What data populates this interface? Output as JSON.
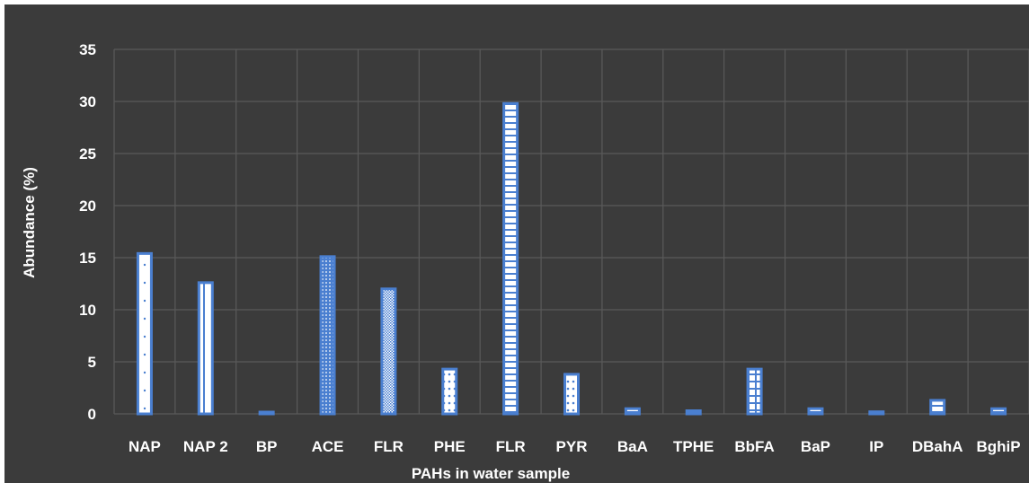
{
  "chart_data": {
    "type": "bar",
    "xlabel": "PAHs in water sample",
    "ylabel": "Abundance (%)",
    "ylim": [
      0,
      35
    ],
    "yticks": [
      0,
      5,
      10,
      15,
      20,
      25,
      30,
      35
    ],
    "grid": true,
    "categories": [
      "NAP",
      "NAP 2",
      "BP",
      "ACE",
      "FLR",
      "PHE",
      "FLR",
      "PYR",
      "BaA",
      "TPHE",
      "BbFA",
      "BaP",
      "IP",
      "DBahA",
      "BghiP"
    ],
    "values": [
      15.4,
      12.6,
      0.1,
      15.1,
      12.0,
      4.3,
      29.8,
      3.8,
      0.5,
      0.3,
      4.3,
      0.5,
      0.2,
      1.3,
      0.5
    ],
    "colors": {
      "background": "#3b3b3b",
      "grid": "#5a5a5a",
      "bar_fill": "#ffffff",
      "bar_outline": "#4a7fd0",
      "text": "#ffffff"
    }
  }
}
